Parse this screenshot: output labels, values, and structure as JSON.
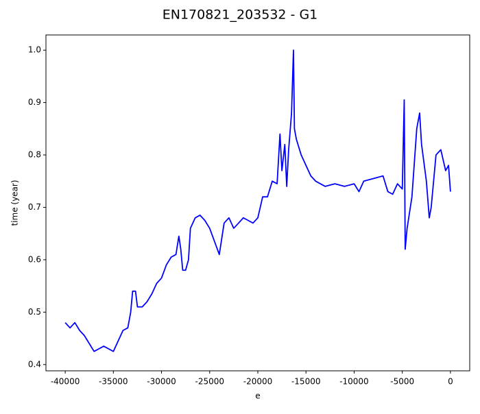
{
  "chart_data": {
    "type": "line",
    "title": "EN170821_203532 - G1",
    "x_label": "e",
    "y_label": "time (year)",
    "x": [
      -40000,
      -39500,
      -39000,
      -38500,
      -38000,
      -37500,
      -37000,
      -36500,
      -36000,
      -35500,
      -35000,
      -34500,
      -34000,
      -33500,
      -33200,
      -33000,
      -32700,
      -32500,
      -32000,
      -31500,
      -31000,
      -30500,
      -30000,
      -29500,
      -29000,
      -28500,
      -28200,
      -28000,
      -27800,
      -27500,
      -27200,
      -27000,
      -26500,
      -26000,
      -25500,
      -25000,
      -24500,
      -24000,
      -23500,
      -23000,
      -22500,
      -22000,
      -21500,
      -21000,
      -20500,
      -20000,
      -19500,
      -19000,
      -18500,
      -18000,
      -17700,
      -17500,
      -17200,
      -17000,
      -16800,
      -16500,
      -16300,
      -16200,
      -16000,
      -15500,
      -15000,
      -14500,
      -14000,
      -13000,
      -12000,
      -11000,
      -10000,
      -9500,
      -9000,
      -8000,
      -7000,
      -6500,
      -6000,
      -5500,
      -5000,
      -4800,
      -4700,
      -4500,
      -4000,
      -3500,
      -3200,
      -3000,
      -2500,
      -2200,
      -2000,
      -1500,
      -1000,
      -500,
      -200,
      0
    ],
    "series": [
      {
        "name": "G1",
        "color": "#0000ff",
        "values": [
          0.48,
          0.47,
          0.48,
          0.465,
          0.455,
          0.44,
          0.425,
          0.43,
          0.435,
          0.43,
          0.425,
          0.445,
          0.465,
          0.47,
          0.5,
          0.54,
          0.54,
          0.51,
          0.51,
          0.52,
          0.535,
          0.555,
          0.565,
          0.59,
          0.605,
          0.61,
          0.645,
          0.62,
          0.58,
          0.58,
          0.6,
          0.66,
          0.68,
          0.685,
          0.675,
          0.66,
          0.635,
          0.61,
          0.67,
          0.68,
          0.66,
          0.67,
          0.68,
          0.675,
          0.67,
          0.68,
          0.72,
          0.72,
          0.75,
          0.745,
          0.84,
          0.77,
          0.82,
          0.74,
          0.81,
          0.88,
          1.0,
          0.85,
          0.83,
          0.8,
          0.78,
          0.76,
          0.75,
          0.74,
          0.745,
          0.74,
          0.745,
          0.73,
          0.75,
          0.755,
          0.76,
          0.73,
          0.725,
          0.745,
          0.735,
          0.905,
          0.62,
          0.66,
          0.72,
          0.85,
          0.88,
          0.82,
          0.75,
          0.68,
          0.7,
          0.8,
          0.81,
          0.77,
          0.78,
          0.73
        ]
      }
    ],
    "xlim": [
      -42000,
      2000
    ],
    "ylim": [
      0.388,
      1.029
    ],
    "xticks": [
      -40000,
      -35000,
      -30000,
      -25000,
      -20000,
      -15000,
      -10000,
      -5000,
      0
    ],
    "yticks": [
      0.4,
      0.5,
      0.6,
      0.7,
      0.8,
      0.9,
      {
        "value": 1,
        "label": "1.0"
      }
    ]
  }
}
